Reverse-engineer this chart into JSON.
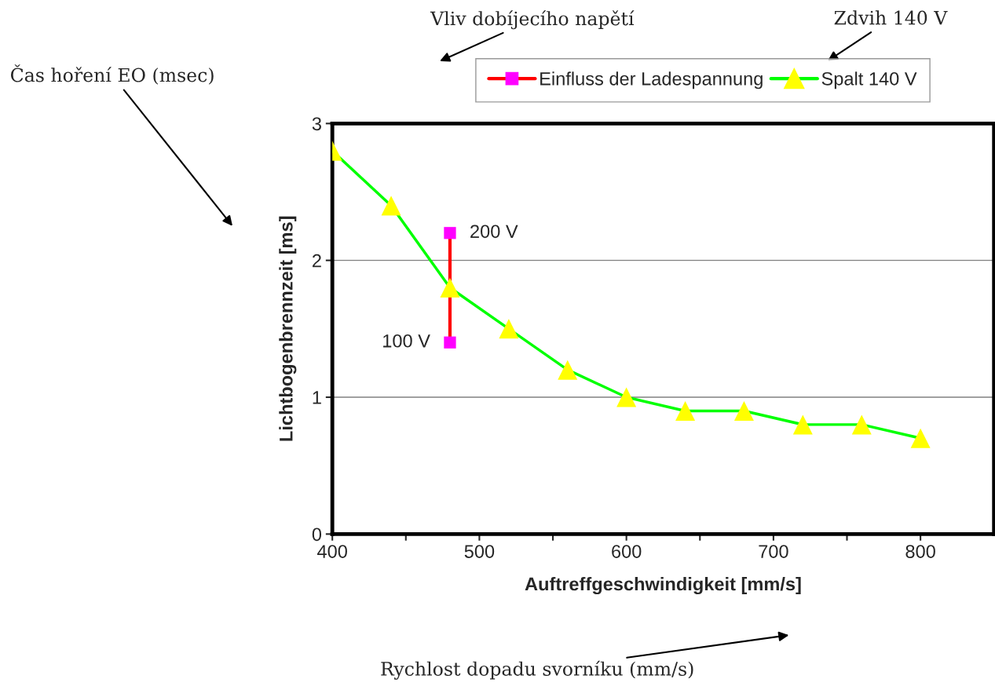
{
  "chart_data": {
    "type": "line",
    "xlabel": "Auftreffgeschwindigkeit [mm/s]",
    "ylabel": "Lichtbogenbrennzeit [ms]",
    "xlim": [
      400,
      850
    ],
    "xticks": [
      400,
      {
        "value": 450,
        "label": null
      },
      500,
      {
        "value": 550,
        "label": null
      },
      600,
      {
        "value": 650,
        "label": null
      },
      700,
      {
        "value": 750,
        "label": null
      },
      800
    ],
    "ylim": [
      0,
      3
    ],
    "yticks": [
      0,
      1,
      2,
      3
    ],
    "grid": "y",
    "legend": "top",
    "line_style": "solid",
    "series": [
      {
        "name": "Einfluss der Ladespannung",
        "color": "#ff0000",
        "marker": "square",
        "colors": [
          "#ff00ff",
          "#ff00ff"
        ],
        "x": [
          480,
          480
        ],
        "values": [
          1.4,
          2.2
        ]
      },
      {
        "name": "Spalt 140 V",
        "color": "#00ff00",
        "marker": "triangle",
        "colors": [
          "#ffff00",
          "#ffff00",
          "#ffff00",
          "#ffff00",
          "#ffff00",
          "#ffff00",
          "#ffff00",
          "#ffff00",
          "#ffff00",
          "#ffff00",
          "#ffff00"
        ],
        "x": [
          400,
          440,
          480,
          520,
          560,
          600,
          640,
          680,
          720,
          760,
          800
        ],
        "values": [
          2.8,
          2.4,
          1.8,
          1.5,
          1.2,
          1.0,
          0.9,
          0.9,
          0.8,
          0.8,
          0.7
        ]
      }
    ],
    "annotations": [
      {
        "text": "200 V",
        "x": 480,
        "y": 2.2
      },
      {
        "text": "100 V",
        "x": 480,
        "y": 1.4
      },
      "Vliv dobíjecího napětí",
      "Zdvih 140 V",
      "Čas hoření EO (msec)",
      "Rychlost dopadu svorníku (mm/s)"
    ]
  }
}
